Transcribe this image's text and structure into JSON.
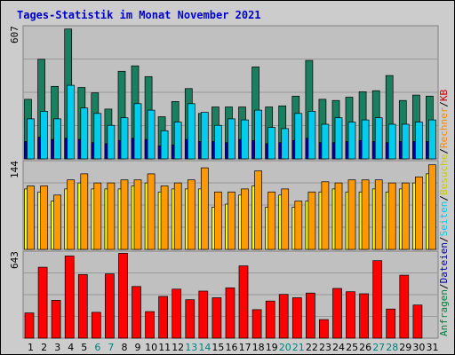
{
  "colors": {
    "background": "#cccccc",
    "panel": "#c0c0c0",
    "grid": "#999999",
    "title": "#0000cc",
    "weekday": "#000000",
    "weekend": "#008080",
    "anfragen": "#1a7f5e",
    "anfragen_legend": "#008040",
    "dateien": "#0000aa",
    "seiten": "#00ccee",
    "besuche": "#ffff00",
    "besuche_legend": "#cccc00",
    "rechner": "#ff9900",
    "rechner_legend": "#ff8800",
    "kb": "#ff0000",
    "kb_legend": "#cc0000"
  },
  "chart_data": {
    "type": "bar",
    "title": "Tages-Statistik im Monat November 2021",
    "categories": [
      "1",
      "2",
      "3",
      "4",
      "5",
      "6",
      "7",
      "8",
      "9",
      "10",
      "11",
      "12",
      "13",
      "14",
      "15",
      "16",
      "17",
      "18",
      "19",
      "20",
      "21",
      "22",
      "23",
      "24",
      "25",
      "26",
      "27",
      "28",
      "29",
      "30",
      "31"
    ],
    "weekend_days": [
      "6",
      "7",
      "13",
      "14",
      "20",
      "21",
      "27",
      "28"
    ],
    "panels": [
      {
        "ymax_label": "607",
        "ymax": 607,
        "series": [
          {
            "name": "Anfragen",
            "values": [
              275,
              460,
              335,
              600,
              330,
              305,
              230,
              405,
              430,
              380,
              195,
              265,
              325,
              210,
              240,
              240,
              240,
              425,
              240,
              245,
              290,
              455,
              275,
              270,
              285,
              310,
              315,
              385,
              270,
              295,
              290
            ]
          },
          {
            "name": "Dateien",
            "values": [
              80,
              100,
              90,
              95,
              90,
              75,
              70,
              85,
              95,
              90,
              60,
              65,
              90,
              80,
              80,
              75,
              90,
              85,
              70,
              75,
              85,
              95,
              75,
              75,
              80,
              85,
              80,
              75,
              80,
              80,
              80
            ]
          },
          {
            "name": "Seiten",
            "values": [
              185,
              220,
              185,
              340,
              235,
              210,
              155,
              190,
              255,
              225,
              130,
              170,
              255,
              215,
              155,
              185,
              180,
              225,
              145,
              140,
              210,
              220,
              160,
              190,
              170,
              180,
              190,
              160,
              160,
              170,
              180
            ]
          }
        ]
      },
      {
        "ymax_label": "144",
        "ymax": 144,
        "series": [
          {
            "name": "Besuche",
            "values": [
              100,
              95,
              80,
              100,
              110,
              100,
              100,
              100,
              105,
              110,
              95,
              100,
              100,
              100,
              70,
              75,
              90,
              105,
              70,
              90,
              70,
              80,
              95,
              100,
              95,
              95,
              100,
              95,
              100,
              110,
              125
            ]
          },
          {
            "name": "Rechner",
            "values": [
              105,
              105,
              90,
              115,
              125,
              110,
              110,
              115,
              115,
              125,
              105,
              110,
              115,
              135,
              95,
              95,
              100,
              130,
              95,
              100,
              80,
              95,
              112,
              110,
              115,
              115,
              115,
              110,
              110,
              120,
              140
            ]
          }
        ]
      },
      {
        "ymax_label": "643",
        "ymax": 643,
        "series": [
          {
            "name": "KB",
            "values": [
              190,
              535,
              285,
              620,
              480,
              195,
              485,
              640,
              390,
              200,
              315,
              370,
              290,
              355,
              305,
              380,
              545,
              215,
              280,
              330,
              305,
              340,
              140,
              375,
              350,
              335,
              585,
              220,
              475,
              250,
              0
            ]
          }
        ]
      }
    ],
    "legend_right": [
      {
        "text": "Anfragen",
        "color": "#008040"
      },
      {
        "text": "/",
        "color": "#000000"
      },
      {
        "text": "Dateien",
        "color": "#0000aa"
      },
      {
        "text": "/",
        "color": "#000000"
      },
      {
        "text": "Seiten",
        "color": "#00ccee"
      },
      {
        "text": "/",
        "color": "#000000"
      },
      {
        "text": "Besuche",
        "color": "#cccc00"
      },
      {
        "text": "/",
        "color": "#000000"
      },
      {
        "text": "Rechner",
        "color": "#ff8800"
      },
      {
        "text": "/",
        "color": "#000000"
      },
      {
        "text": "KB",
        "color": "#cc0000"
      }
    ]
  }
}
